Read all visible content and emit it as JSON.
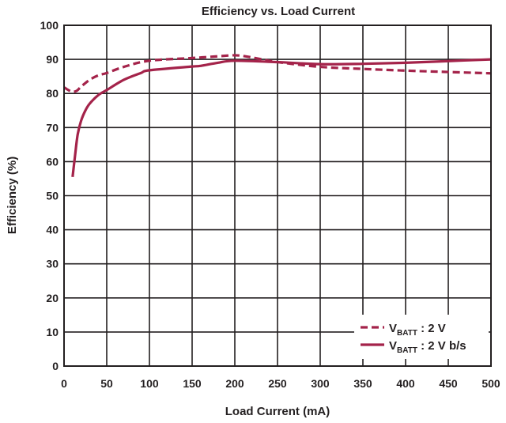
{
  "chart_data": {
    "type": "line",
    "title": "Efficiency vs. Load Current",
    "xlabel": "Load Current (mA)",
    "ylabel": "Efficiency (%)",
    "xlim": [
      0,
      500
    ],
    "ylim": [
      0,
      100
    ],
    "xticks": [
      0,
      50,
      100,
      150,
      200,
      250,
      300,
      350,
      400,
      450,
      500
    ],
    "yticks": [
      0,
      10,
      20,
      30,
      40,
      50,
      60,
      70,
      80,
      90,
      100
    ],
    "grid": true,
    "legend_position": "bottom-right",
    "series": [
      {
        "name_main": "V",
        "name_sub": "BATT",
        "name_rest": " : 2 V",
        "style": "dashed",
        "color": "#a4234a",
        "x": [
          0,
          5,
          10,
          15,
          20,
          30,
          40,
          50,
          70,
          100,
          150,
          180,
          200,
          215,
          240,
          250,
          300,
          350,
          400,
          450,
          500
        ],
        "y": [
          81.8,
          81.0,
          80.5,
          80.8,
          82.0,
          84.0,
          85.3,
          86.0,
          87.8,
          89.6,
          90.4,
          90.9,
          91.2,
          90.8,
          89.6,
          89.2,
          87.8,
          87.2,
          86.7,
          86.3,
          85.9
        ]
      },
      {
        "name_main": "V",
        "name_sub": "BATT",
        "name_rest": " : 2 V b/s",
        "style": "solid",
        "color": "#a4234a",
        "x": [
          10,
          13,
          16,
          20,
          25,
          30,
          40,
          50,
          70,
          90,
          100,
          150,
          160,
          180,
          200,
          250,
          300,
          350,
          400,
          450,
          500
        ],
        "y": [
          55.5,
          62.0,
          68.0,
          72.0,
          75.0,
          77.0,
          79.5,
          81.0,
          84.0,
          86.0,
          86.8,
          87.9,
          88.1,
          89.0,
          89.6,
          89.2,
          88.6,
          88.7,
          89.0,
          89.5,
          90.0
        ]
      }
    ]
  }
}
